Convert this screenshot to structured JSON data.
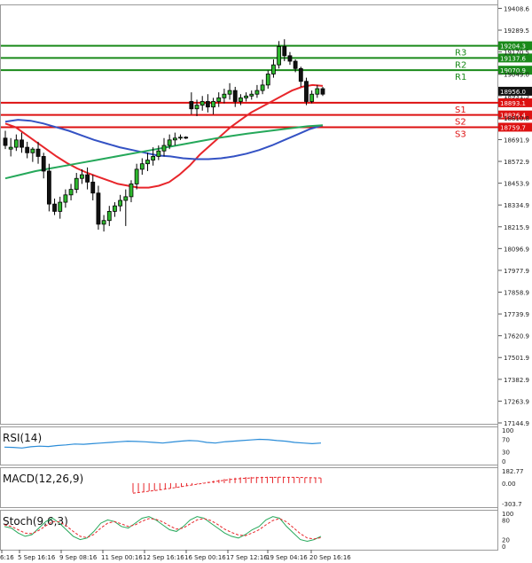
{
  "chart_data": {
    "type": "candlestick",
    "price_axis": {
      "ticks": [
        "19408.6",
        "19289.5",
        "19170.5",
        "19049.0",
        "18931.5",
        "18810.8",
        "18691.9",
        "18572.9",
        "18453.9",
        "18334.9",
        "18215.9",
        "18096.9",
        "17977.9",
        "17858.9",
        "17739.9",
        "17620.9",
        "17501.9",
        "17382.9",
        "17263.9",
        "17144.9"
      ],
      "range": [
        17140.0,
        19430.0
      ]
    },
    "levels": [
      {
        "name": "R3",
        "value": 19204.3,
        "price_label": "19204.3",
        "color": "#1a8a1a"
      },
      {
        "name": "R2",
        "value": 19137.6,
        "price_label": "19137.6",
        "color": "#1a8a1a"
      },
      {
        "name": "R1",
        "value": 19070.9,
        "price_label": "19070.9",
        "color": "#1a8a1a"
      },
      {
        "name": "S1",
        "value": 18893.1,
        "price_label": "18893.1",
        "color": "#dd1111"
      },
      {
        "name": "S2",
        "value": 18826.4,
        "price_label": "18826.4",
        "color": "#dd1111"
      },
      {
        "name": "S3",
        "value": 18759.7,
        "price_label": "18759.7",
        "color": "#dd1111"
      }
    ],
    "current_price": {
      "value": 18956.0,
      "label": "18956.0"
    },
    "time_axis": [
      "6:16",
      "5 Sep 16:16",
      "9 Sep 08:16",
      "11 Sep 00:16",
      "12 Sep 16:16",
      "16 Sep 00:16",
      "17 Sep 12:16",
      "19 Sep 04:16",
      "20 Sep 16:16"
    ],
    "candles": [
      [
        18700,
        18740,
        18660,
        18640
      ],
      [
        18640,
        18700,
        18650,
        18600
      ],
      [
        18650,
        18720,
        18690,
        18630
      ],
      [
        18690,
        18730,
        18650,
        18620
      ],
      [
        18650,
        18680,
        18620,
        18590
      ],
      [
        18620,
        18650,
        18640,
        18570
      ],
      [
        18640,
        18680,
        18600,
        18560
      ],
      [
        18600,
        18620,
        18520,
        18480
      ],
      [
        18520,
        18560,
        18340,
        18300
      ],
      [
        18340,
        18370,
        18300,
        18280
      ],
      [
        18300,
        18380,
        18350,
        18260
      ],
      [
        18350,
        18420,
        18390,
        18320
      ],
      [
        18390,
        18450,
        18420,
        18360
      ],
      [
        18420,
        18510,
        18480,
        18400
      ],
      [
        18480,
        18530,
        18500,
        18450
      ],
      [
        18500,
        18540,
        18460,
        18420
      ],
      [
        18460,
        18500,
        18400,
        18360
      ],
      [
        18400,
        18440,
        18230,
        18200
      ],
      [
        18230,
        18280,
        18250,
        18190
      ],
      [
        18250,
        18330,
        18300,
        18220
      ],
      [
        18300,
        18350,
        18330,
        18270
      ],
      [
        18330,
        18390,
        18360,
        18300
      ],
      [
        18360,
        18420,
        18380,
        18220
      ],
      [
        18380,
        18470,
        18450,
        18350
      ],
      [
        18450,
        18560,
        18530,
        18420
      ],
      [
        18530,
        18590,
        18560,
        18500
      ],
      [
        18560,
        18620,
        18580,
        18520
      ],
      [
        18580,
        18650,
        18600,
        18550
      ],
      [
        18600,
        18660,
        18630,
        18580
      ],
      [
        18630,
        18700,
        18660,
        18600
      ],
      [
        18660,
        18720,
        18690,
        18640
      ],
      [
        18690,
        18730,
        18700,
        18660
      ],
      [
        18700,
        18720,
        18705,
        18690
      ],
      [
        18705,
        18710,
        18700,
        18695
      ],
      [
        18900,
        18950,
        18860,
        18830
      ],
      [
        18860,
        18910,
        18880,
        18820
      ],
      [
        18880,
        18930,
        18900,
        18850
      ],
      [
        18900,
        18940,
        18870,
        18840
      ],
      [
        18870,
        18920,
        18900,
        18830
      ],
      [
        18900,
        18950,
        18920,
        18870
      ],
      [
        18920,
        18970,
        18940,
        18890
      ],
      [
        18940,
        19000,
        18960,
        18910
      ],
      [
        18960,
        18980,
        18900,
        18870
      ],
      [
        18900,
        18940,
        18920,
        18880
      ],
      [
        18920,
        18950,
        18930,
        18900
      ],
      [
        18930,
        18960,
        18940,
        18910
      ],
      [
        18940,
        18990,
        18960,
        18920
      ],
      [
        18960,
        19020,
        18990,
        18940
      ],
      [
        18990,
        19070,
        19050,
        18970
      ],
      [
        19050,
        19130,
        19100,
        19030
      ],
      [
        19100,
        19230,
        19200,
        19080
      ],
      [
        19200,
        19240,
        19150,
        19120
      ],
      [
        19150,
        19170,
        19120,
        19100
      ],
      [
        19120,
        19130,
        19080,
        19060
      ],
      [
        19080,
        19090,
        19010,
        18980
      ],
      [
        19010,
        19030,
        18900,
        18880
      ],
      [
        18900,
        18960,
        18940,
        18890
      ],
      [
        18940,
        18990,
        18970,
        18920
      ],
      [
        18970,
        18980,
        18940,
        18930
      ]
    ],
    "moving_averages": [
      {
        "color": "#e8262b",
        "values": [
          18780,
          18760,
          18720,
          18680,
          18640,
          18600,
          18565,
          18535,
          18510,
          18490,
          18470,
          18450,
          18440,
          18430,
          18430,
          18440,
          18460,
          18500,
          18550,
          18610,
          18660,
          18710,
          18760,
          18800,
          18840,
          18870,
          18900,
          18930,
          18960,
          18980,
          18990,
          18985
        ]
      },
      {
        "color": "#3452c4",
        "values": [
          18790,
          18800,
          18795,
          18780,
          18760,
          18740,
          18715,
          18690,
          18670,
          18650,
          18635,
          18620,
          18605,
          18600,
          18590,
          18585,
          18585,
          18590,
          18600,
          18615,
          18635,
          18660,
          18690,
          18720,
          18750,
          18770
        ]
      },
      {
        "color": "#25a85a",
        "values": [
          18480,
          18500,
          18520,
          18535,
          18550,
          18565,
          18580,
          18595,
          18610,
          18625,
          18640,
          18655,
          18670,
          18685,
          18700,
          18712,
          18724,
          18735,
          18745,
          18755,
          18765,
          18770
        ]
      }
    ],
    "indicators": [
      {
        "name": "RSI(14)",
        "ticks": [
          "100",
          "70",
          "30",
          "0"
        ],
        "range": [
          0,
          100
        ],
        "color": "#2a8cd8",
        "values": [
          45,
          44,
          42,
          46,
          48,
          47,
          50,
          52,
          55,
          54,
          56,
          58,
          60,
          62,
          64,
          63,
          62,
          60,
          58,
          61,
          64,
          66,
          65,
          60,
          58,
          62,
          64,
          66,
          68,
          70,
          69,
          66,
          64,
          60,
          58,
          56,
          58
        ]
      },
      {
        "name": "MACD(12,26,9)",
        "ticks": [
          "182.77",
          "0.00",
          "-303.7"
        ],
        "range": [
          -303.7,
          182.77
        ],
        "histogram_color": "#e8262b",
        "signal_color": "#e8262b",
        "histogram": [
          -140,
          -130,
          -125,
          -118,
          -110,
          -100,
          -90,
          -80,
          -70,
          -55,
          -40,
          -25,
          -10,
          5,
          20,
          35,
          50,
          62,
          72,
          80,
          86,
          90,
          92,
          93,
          94,
          93,
          92,
          90,
          88,
          86,
          84,
          82,
          80,
          78,
          76,
          74
        ],
        "signal": [
          -150,
          -140,
          -130,
          -120,
          -110,
          -100,
          -88,
          -76,
          -64,
          -52,
          -40,
          -28,
          -16,
          -4,
          8,
          20,
          32,
          42,
          52,
          60,
          67,
          72,
          76,
          80,
          83,
          85,
          86,
          87,
          87,
          86,
          85,
          84,
          82,
          80,
          78,
          76
        ]
      },
      {
        "name": "Stoch(9,6,3)",
        "ticks": [
          "100",
          "80",
          "20",
          "0"
        ],
        "range": [
          0,
          100
        ],
        "k_color": "#25a85a",
        "d_color": "#e8262b",
        "k": [
          60,
          55,
          40,
          30,
          35,
          55,
          75,
          85,
          70,
          50,
          30,
          20,
          25,
          45,
          70,
          80,
          75,
          60,
          55,
          70,
          85,
          90,
          80,
          65,
          50,
          45,
          60,
          80,
          90,
          85,
          70,
          55,
          40,
          30,
          25,
          35,
          50,
          60,
          80,
          90,
          85,
          60,
          40,
          20,
          15,
          20,
          30
        ],
        "d": [
          65,
          60,
          50,
          40,
          38,
          48,
          62,
          75,
          74,
          62,
          45,
          30,
          26,
          36,
          55,
          70,
          75,
          68,
          60,
          65,
          76,
          84,
          82,
          74,
          62,
          52,
          55,
          68,
          80,
          84,
          78,
          66,
          52,
          42,
          34,
          32,
          40,
          50,
          65,
          78,
          84,
          74,
          56,
          38,
          25,
          22,
          26
        ]
      }
    ]
  }
}
